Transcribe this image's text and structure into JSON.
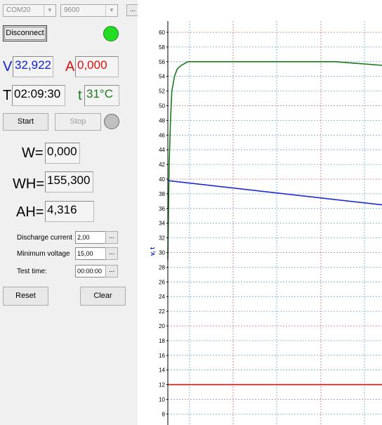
{
  "connection": {
    "port": "COM20",
    "baud": "9600",
    "browse_label": "...",
    "disconnect_label": "Disconnect",
    "status_color": "#22dd22"
  },
  "readings": {
    "v_label": "V",
    "v_value": "32,922",
    "a_label": "A",
    "a_value": "0,000",
    "t_label": "T",
    "t_value": "02:09:30",
    "temp_label": "t",
    "temp_value": "31°C"
  },
  "controls": {
    "start_label": "Start",
    "stop_label": "Stop",
    "run_indicator_color": "#c0c0c0"
  },
  "totals": {
    "w_label": "W=",
    "w_value": "0,000",
    "wh_label": "WH=",
    "wh_value": "155,300",
    "ah_label": "AH=",
    "ah_value": "4,316"
  },
  "settings": {
    "discharge_label": "Discharge current",
    "discharge_value": "2,00",
    "minvolt_label": "Minimum voltage",
    "minvolt_value": "15,00",
    "testtime_label": "Test time:",
    "testtime_value": "00:00:00",
    "dots_label": "..."
  },
  "actions": {
    "reset_label": "Reset",
    "clear_label": "Clear"
  },
  "chart_data": {
    "type": "line",
    "ylabel": "v, t",
    "ylim": [
      7,
      61
    ],
    "y_ticks": [
      8,
      10,
      12,
      14,
      16,
      18,
      20,
      22,
      24,
      26,
      28,
      30,
      32,
      34,
      36,
      38,
      40,
      42,
      44,
      46,
      48,
      50,
      52,
      54,
      56,
      58,
      60
    ],
    "grid": true,
    "series": [
      {
        "color": "#1a7a1a",
        "x": [
          0,
          1,
          2,
          4,
          6,
          10,
          14,
          20,
          30,
          60,
          150,
          250,
          320
        ],
        "y": [
          29,
          36,
          42,
          48,
          52,
          54,
          55,
          55.5,
          56,
          56,
          56,
          56,
          55.5
        ]
      },
      {
        "color": "#1a2bd0",
        "x": [
          0,
          320
        ],
        "y": [
          39.8,
          36.5
        ]
      },
      {
        "color": "#e01010",
        "x": [
          0,
          320
        ],
        "y": [
          12,
          12
        ]
      }
    ]
  }
}
